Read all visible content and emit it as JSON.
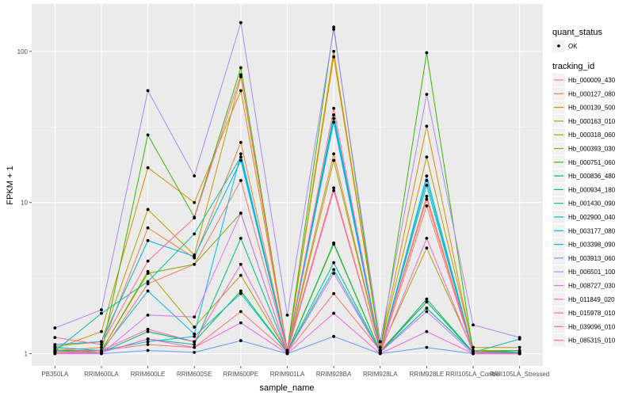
{
  "chart_data": {
    "type": "line",
    "title": "",
    "xlabel": "sample_name",
    "ylabel": "FPKM + 1",
    "yscale": "log10",
    "ylim": [
      0.83,
      206
    ],
    "yticks": [
      1,
      10,
      100
    ],
    "ytick_labels": [
      "1",
      "10",
      "100"
    ],
    "grid": true,
    "categories": [
      "PB350LA",
      "RRIM600LA",
      "RRIM600LE",
      "RRIM600SE",
      "RRIM600PE",
      "RRIM901LA",
      "RRIM928BA",
      "RRIM928LA",
      "RRIM928LE",
      "RRII105LA_Control",
      "RRII105LA_Stressed"
    ],
    "legend": {
      "placement": "right",
      "shape_title": "quant_status",
      "shape_entries": [
        "OK"
      ],
      "color_title": "tracking_id"
    },
    "series": [
      {
        "name": "Hb_000009_430",
        "color": "#F8766D",
        "values": [
          1.1,
          1.05,
          1.15,
          1.1,
          1.9,
          1.02,
          2.5,
          1.05,
          2.2,
          1.03,
          1.02
        ]
      },
      {
        "name": "Hb_000127_080",
        "color": "#EA8331",
        "values": [
          1.05,
          1.1,
          6.8,
          4.3,
          25.0,
          1.05,
          21.0,
          1.05,
          10.5,
          1.02,
          1.0
        ]
      },
      {
        "name": "Hb_000139_500",
        "color": "#D89000",
        "values": [
          1.08,
          1.4,
          17.0,
          10.0,
          55.0,
          1.05,
          92.0,
          1.1,
          32.0,
          1.05,
          1.05
        ]
      },
      {
        "name": "Hb_000163_010",
        "color": "#C09B00",
        "values": [
          1.12,
          1.2,
          9.0,
          4.5,
          68.0,
          1.05,
          100.0,
          1.1,
          20.0,
          1.1,
          1.1
        ]
      },
      {
        "name": "Hb_000318_060",
        "color": "#A3A500",
        "values": [
          1.05,
          1.05,
          3.5,
          1.5,
          3.3,
          1.02,
          19.0,
          1.05,
          5.0,
          1.05,
          1.02
        ]
      },
      {
        "name": "Hb_000393_030",
        "color": "#7CAE00",
        "values": [
          1.03,
          1.05,
          3.4,
          3.9,
          8.5,
          1.02,
          5.3,
          1.02,
          2.0,
          1.02,
          1.0
        ]
      },
      {
        "name": "Hb_000751_060",
        "color": "#39B600",
        "values": [
          1.06,
          1.02,
          28.0,
          8.0,
          78.0,
          1.05,
          145.0,
          1.05,
          98.0,
          1.02,
          1.0
        ]
      },
      {
        "name": "Hb_000836_480",
        "color": "#00BB4E",
        "values": [
          1.02,
          1.02,
          1.4,
          1.2,
          2.6,
          1.02,
          5.4,
          1.02,
          2.3,
          1.02,
          1.05
        ]
      },
      {
        "name": "Hb_000934_180",
        "color": "#00BF7D",
        "values": [
          1.02,
          1.02,
          1.25,
          1.15,
          5.8,
          1.02,
          4.0,
          1.02,
          2.2,
          1.02,
          1.05
        ]
      },
      {
        "name": "Hb_001430_090",
        "color": "#00C1A3",
        "values": [
          1.04,
          1.85,
          3.0,
          6.2,
          20.0,
          1.05,
          38.0,
          1.05,
          13.0,
          1.02,
          1.25
        ]
      },
      {
        "name": "Hb_002900_040",
        "color": "#00BFC4",
        "values": [
          1.03,
          1.05,
          1.2,
          1.3,
          2.5,
          1.02,
          3.6,
          1.02,
          2.0,
          1.02,
          1.02
        ]
      },
      {
        "name": "Hb_003177_080",
        "color": "#00B9E3",
        "values": [
          1.1,
          1.05,
          2.6,
          1.35,
          21.0,
          1.05,
          36.0,
          1.05,
          14.0,
          1.02,
          1.02
        ]
      },
      {
        "name": "Hb_003398_090",
        "color": "#00ADFA",
        "values": [
          1.15,
          1.2,
          5.6,
          4.4,
          19.0,
          1.05,
          34.0,
          1.02,
          15.0,
          1.02,
          1.02
        ]
      },
      {
        "name": "Hb_003913_060",
        "color": "#619CFF",
        "values": [
          1.03,
          1.0,
          1.05,
          1.02,
          1.22,
          1.0,
          1.3,
          1.0,
          1.1,
          1.0,
          1.0
        ]
      },
      {
        "name": "Hb_006501_100",
        "color": "#AE87FF",
        "values": [
          1.48,
          1.95,
          55.0,
          15.0,
          155.0,
          1.8,
          140.0,
          1.2,
          52.0,
          1.55,
          1.28
        ]
      },
      {
        "name": "Hb_008727_030",
        "color": "#DB72FB",
        "values": [
          1.0,
          1.0,
          1.8,
          1.75,
          8.5,
          1.02,
          3.4,
          1.02,
          1.9,
          1.0,
          1.0
        ]
      },
      {
        "name": "Hb_011849_020",
        "color": "#F564E3",
        "values": [
          1.0,
          1.02,
          1.25,
          1.1,
          1.6,
          1.0,
          1.85,
          1.0,
          1.4,
          1.0,
          1.0
        ]
      },
      {
        "name": "Hb_015978_010",
        "color": "#FF61C3",
        "values": [
          1.02,
          1.05,
          1.45,
          1.2,
          3.9,
          1.02,
          12.0,
          1.02,
          5.8,
          1.02,
          1.0
        ]
      },
      {
        "name": "Hb_039096_010",
        "color": "#FF6C91",
        "values": [
          1.28,
          1.15,
          4.1,
          7.9,
          70.0,
          1.05,
          42.0,
          1.05,
          11.0,
          1.02,
          1.0
        ]
      },
      {
        "name": "Hb_085315_010",
        "color": "#F8766D",
        "values": [
          1.02,
          1.02,
          2.9,
          3.9,
          14.0,
          1.05,
          12.5,
          1.02,
          9.5,
          1.02,
          1.0
        ]
      }
    ]
  }
}
